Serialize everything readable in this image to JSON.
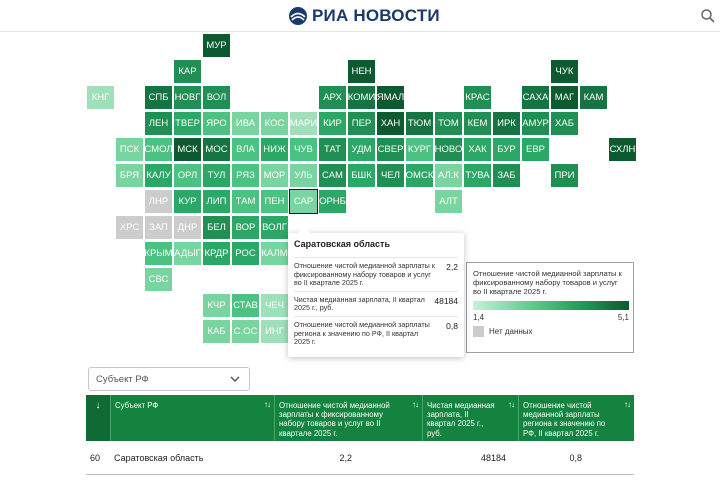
{
  "header": {
    "brand": "РИА НОВОСТИ",
    "logo_icon": "globe-icon",
    "search_icon": "search-icon"
  },
  "colors": {
    "c1": "#c3ecd4",
    "c2": "#9fe0bb",
    "c3": "#78d59f",
    "c4": "#4cc282",
    "c5": "#2ba866",
    "c6": "#1f8f53",
    "c7": "#157442",
    "c8": "#0e5a30",
    "na": "#cccccc",
    "accent": "#13833f"
  },
  "map": {
    "regions": [
      {
        "label": "МУР",
        "shade": "c8"
      },
      {
        "label": "КАР",
        "shade": "c6"
      },
      {
        "label": "НЕН",
        "shade": "c8"
      },
      {
        "label": "ЧУК",
        "shade": "c8"
      },
      {
        "label": "КНГ",
        "shade": "c2"
      },
      {
        "label": "СПБ",
        "shade": "c7"
      },
      {
        "label": "НОВГ",
        "shade": "c6"
      },
      {
        "label": "ВОЛ",
        "shade": "c6"
      },
      {
        "label": "АРХ",
        "shade": "c6"
      },
      {
        "label": "КОМИ",
        "shade": "c7"
      },
      {
        "label": "ЯМАЛ",
        "shade": "c8"
      },
      {
        "label": "КРАС",
        "shade": "c6"
      },
      {
        "label": "САХА",
        "shade": "c7"
      },
      {
        "label": "МАГ",
        "shade": "c8"
      },
      {
        "label": "КАМ",
        "shade": "c7"
      },
      {
        "label": "ЛЕН",
        "shade": "c6"
      },
      {
        "label": "ТВЕР",
        "shade": "c5"
      },
      {
        "label": "ЯРО",
        "shade": "c4"
      },
      {
        "label": "ИВА",
        "shade": "c3"
      },
      {
        "label": "КОС",
        "shade": "c3"
      },
      {
        "label": "МАРИ",
        "shade": "c2"
      },
      {
        "label": "КИР",
        "shade": "c5"
      },
      {
        "label": "ПЕР",
        "shade": "c6"
      },
      {
        "label": "ХАН",
        "shade": "c8"
      },
      {
        "label": "ТЮМ",
        "shade": "c7"
      },
      {
        "label": "ТОМ",
        "shade": "c6"
      },
      {
        "label": "КЕМ",
        "shade": "c6"
      },
      {
        "label": "ИРК",
        "shade": "c7"
      },
      {
        "label": "АМУР",
        "shade": "c6"
      },
      {
        "label": "ХАБ",
        "shade": "c6"
      },
      {
        "label": "ПСК",
        "shade": "c3"
      },
      {
        "label": "СМОЛ",
        "shade": "c4"
      },
      {
        "label": "МСК",
        "shade": "c8"
      },
      {
        "label": "МОС",
        "shade": "c7"
      },
      {
        "label": "ВЛА",
        "shade": "c4"
      },
      {
        "label": "НИЖ",
        "shade": "c5"
      },
      {
        "label": "ЧУВ",
        "shade": "c4"
      },
      {
        "label": "ТАТ",
        "shade": "c6"
      },
      {
        "label": "УДМ",
        "shade": "c5"
      },
      {
        "label": "СВЕР",
        "shade": "c6"
      },
      {
        "label": "КУРГ",
        "shade": "c4"
      },
      {
        "label": "НОВО",
        "shade": "c6"
      },
      {
        "label": "ХАК",
        "shade": "c5"
      },
      {
        "label": "БУР",
        "shade": "c5"
      },
      {
        "label": "ЕВР",
        "shade": "c5"
      },
      {
        "label": "СХЛН",
        "shade": "c8"
      },
      {
        "label": "БРЯ",
        "shade": "c3"
      },
      {
        "label": "КАЛУ",
        "shade": "c5"
      },
      {
        "label": "ОРЛ",
        "shade": "c4"
      },
      {
        "label": "ТУЛ",
        "shade": "c5"
      },
      {
        "label": "РЯЗ",
        "shade": "c4"
      },
      {
        "label": "МОР",
        "shade": "c3"
      },
      {
        "label": "УЛЬ",
        "shade": "c3"
      },
      {
        "label": "САМ",
        "shade": "c6"
      },
      {
        "label": "БШК",
        "shade": "c5"
      },
      {
        "label": "ЧЕЛ",
        "shade": "c6"
      },
      {
        "label": "ОМСК",
        "shade": "c5"
      },
      {
        "label": "АЛ.К",
        "shade": "c3"
      },
      {
        "label": "ТУВА",
        "shade": "c5"
      },
      {
        "label": "ЗАБ",
        "shade": "c6"
      },
      {
        "label": "ПРИ",
        "shade": "c6"
      },
      {
        "label": "ЛНР",
        "shade": "na"
      },
      {
        "label": "КУР",
        "shade": "c5"
      },
      {
        "label": "ЛИП",
        "shade": "c5"
      },
      {
        "label": "ТАМ",
        "shade": "c4"
      },
      {
        "label": "ПЕН",
        "shade": "c4"
      },
      {
        "label": "САР",
        "shade": "c3"
      },
      {
        "label": "ОРНБ",
        "shade": "c5"
      },
      {
        "label": "АЛТ",
        "shade": "c3"
      },
      {
        "label": "ХРС",
        "shade": "na"
      },
      {
        "label": "ЗАП",
        "shade": "na"
      },
      {
        "label": "ДНР",
        "shade": "na"
      },
      {
        "label": "БЕЛ",
        "shade": "c6"
      },
      {
        "label": "ВОР",
        "shade": "c5"
      },
      {
        "label": "ВОЛГ",
        "shade": "c5"
      },
      {
        "label": "КРЫМ",
        "shade": "c4"
      },
      {
        "label": "АДЫГ",
        "shade": "c3"
      },
      {
        "label": "КРДР",
        "shade": "c5"
      },
      {
        "label": "РОС",
        "shade": "c5"
      },
      {
        "label": "КАЛМ",
        "shade": "c3"
      },
      {
        "label": "СВС",
        "shade": "c3"
      },
      {
        "label": "КЧР",
        "shade": "c3"
      },
      {
        "label": "СТАВ",
        "shade": "c4"
      },
      {
        "label": "ЧЕЧ",
        "shade": "c2"
      },
      {
        "label": "КАБ",
        "shade": "c3"
      },
      {
        "label": "С.ОС",
        "shade": "c3"
      },
      {
        "label": "ИНГ",
        "shade": "c2"
      }
    ],
    "highlighted": "САР"
  },
  "tooltip": {
    "title": "Саратовская область",
    "rows": [
      {
        "label": "Отношение чистой медианной зарплаты к фиксированному набору товаров и услуг во II квартале 2025 г.",
        "value": "2,2"
      },
      {
        "label": "Чистая медианная зарплата, II квартал 2025 г., руб.",
        "value": "48184"
      },
      {
        "label": "Отношение чистой медианной зарплаты региона к значению по РФ, II квартал 2025 г.",
        "value": "0,8"
      }
    ]
  },
  "legend": {
    "title": "Отношение чистой медианной зарплаты к фиксированному набору товаров и услуг во II квартале 2025 г.",
    "min": "1,4",
    "max": "5,1",
    "na_label": "Нет данных"
  },
  "filter": {
    "placeholder": "Субъект РФ",
    "chevron_icon": "chevron-down-icon"
  },
  "table": {
    "sort_header": "↓",
    "columns": [
      "Субъект РФ",
      "Отношение чистой медианной зарплаты к фиксированному набору товаров и услуг во II квартале 2025 г.",
      "Чистая медианная зарплата, II квартал 2025 г., руб.",
      "Отношение чистой медианной зарплаты региона к значению по РФ, II квартал 2025 г."
    ],
    "sort_glyph": "↑↓",
    "rows": [
      {
        "rank": "60",
        "region": "Саратовская область",
        "ratio": "2,2",
        "salary": "48184",
        "rf_ratio": "0,8"
      }
    ]
  }
}
